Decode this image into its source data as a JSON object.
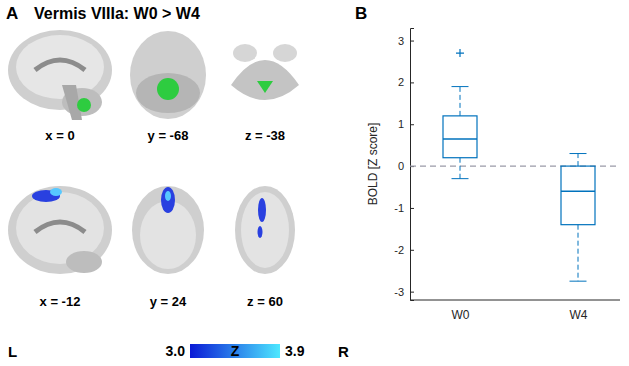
{
  "figure": {
    "panel_a": {
      "label": "A",
      "title": "Vermis VIIIa: W0 > W4",
      "row1": [
        "x = 0",
        "y = -68",
        "z = -38"
      ],
      "row2": [
        "x = -12",
        "y = 24",
        "z = 60"
      ],
      "left": "L",
      "right": "R",
      "colorbar": {
        "label": "Z",
        "range": [
          3,
          3.9
        ],
        "ticks": [
          {
            "value": 3,
            "label": "3.0"
          },
          {
            "value": 3.9,
            "label": "3.9"
          }
        ],
        "colors": [
          "#0a1ad6",
          "#4de8ff"
        ]
      }
    },
    "panel_b": {
      "label": "B"
    }
  },
  "chart_data": {
    "type": "box",
    "y_label": "BOLD [Z score]",
    "categories": [
      "W0",
      "W4"
    ],
    "boxes": [
      {
        "min": -0.3,
        "q1": 0.2,
        "median": 0.65,
        "q3": 1.2,
        "max": 1.9,
        "outliers": [
          2.7
        ]
      },
      {
        "min": -2.75,
        "q1": -1.4,
        "median": -0.6,
        "q3": 0,
        "max": 0.3
      }
    ],
    "color": "#0072bd",
    "hlines": [
      0
    ],
    "ylim": [
      -3.2,
      3.3
    ],
    "yticks": [
      -3,
      -2,
      -1,
      0,
      1,
      2,
      3
    ]
  }
}
